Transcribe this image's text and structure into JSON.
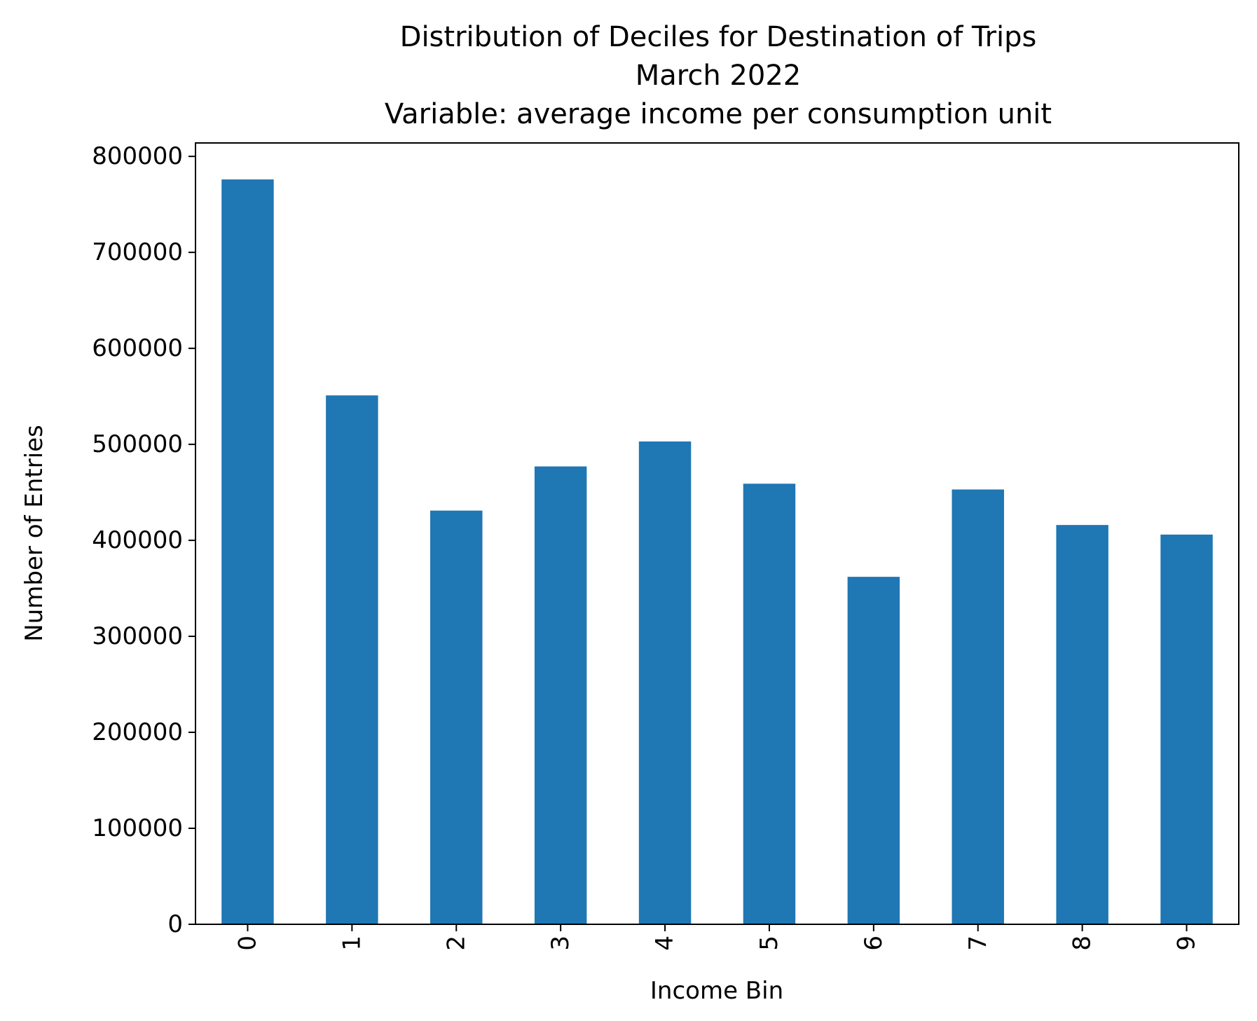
{
  "chart_data": {
    "type": "bar",
    "title_lines": [
      "Distribution of Deciles for Destination of Trips",
      "March 2022",
      "Variable: average income per consumption unit"
    ],
    "xlabel": "Income Bin",
    "ylabel": "Number of Entries",
    "categories": [
      "0",
      "1",
      "2",
      "3",
      "4",
      "5",
      "6",
      "7",
      "8",
      "9"
    ],
    "values": [
      776000,
      551000,
      431000,
      477000,
      503000,
      459000,
      362000,
      453000,
      416000,
      406000
    ],
    "ylim": [
      0,
      814000
    ],
    "yticks": [
      0,
      100000,
      200000,
      300000,
      400000,
      500000,
      600000,
      700000,
      800000
    ],
    "ytick_labels": [
      "0",
      "100000",
      "200000",
      "300000",
      "400000",
      "500000",
      "600000",
      "700000",
      "800000"
    ],
    "bar_color": "#1f77b4",
    "grid": false,
    "legend": "none"
  }
}
